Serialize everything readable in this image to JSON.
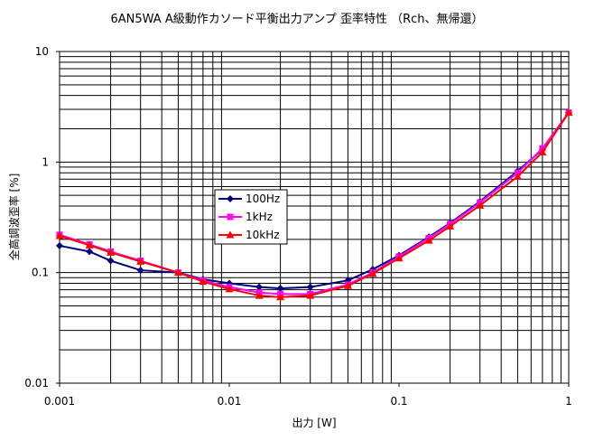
{
  "chart_data": {
    "type": "line",
    "title": "6AN5WA A級動作カソード平衡出力アンプ 歪率特性 （Rch、無帰還）",
    "xlabel": "出力 [W]",
    "ylabel": "全高調波歪率 [%]",
    "xscale": "log",
    "yscale": "log",
    "xlim": [
      0.001,
      1
    ],
    "ylim": [
      0.01,
      10
    ],
    "grid": true,
    "legend_position": "center-left",
    "x_tick_labels": [
      "0.001",
      "0.01",
      "0.1",
      "1"
    ],
    "y_tick_labels": [
      "10",
      "1",
      "0.1",
      "0.01"
    ],
    "series": [
      {
        "name": "100Hz",
        "color": "#000080",
        "marker": "diamond",
        "x": [
          0.001,
          0.0015,
          0.002,
          0.003,
          0.005,
          0.007,
          0.01,
          0.015,
          0.02,
          0.03,
          0.05,
          0.07,
          0.1,
          0.15,
          0.2,
          0.3,
          0.5,
          0.7,
          1.0
        ],
        "y": [
          0.175,
          0.155,
          0.128,
          0.105,
          0.1,
          0.087,
          0.08,
          0.074,
          0.072,
          0.074,
          0.085,
          0.107,
          0.143,
          0.21,
          0.28,
          0.44,
          0.83,
          1.3,
          2.8
        ]
      },
      {
        "name": "1kHz",
        "color": "#ff00ff",
        "marker": "square",
        "x": [
          0.001,
          0.0015,
          0.002,
          0.003,
          0.005,
          0.007,
          0.01,
          0.015,
          0.02,
          0.03,
          0.05,
          0.07,
          0.1,
          0.15,
          0.2,
          0.3,
          0.5,
          0.7,
          1.0
        ],
        "y": [
          0.22,
          0.18,
          0.155,
          0.128,
          0.1,
          0.085,
          0.074,
          0.066,
          0.064,
          0.064,
          0.078,
          0.1,
          0.14,
          0.205,
          0.275,
          0.43,
          0.8,
          1.33,
          2.8
        ]
      },
      {
        "name": "10kHz",
        "color": "#ff0000",
        "marker": "triangle",
        "x": [
          0.001,
          0.0015,
          0.002,
          0.003,
          0.005,
          0.007,
          0.01,
          0.015,
          0.02,
          0.03,
          0.05,
          0.07,
          0.1,
          0.15,
          0.2,
          0.3,
          0.5,
          0.7,
          1.0
        ],
        "y": [
          0.215,
          0.177,
          0.152,
          0.126,
          0.1,
          0.083,
          0.071,
          0.062,
          0.06,
          0.062,
          0.076,
          0.098,
          0.135,
          0.195,
          0.262,
          0.405,
          0.74,
          1.23,
          2.8
        ]
      }
    ]
  }
}
